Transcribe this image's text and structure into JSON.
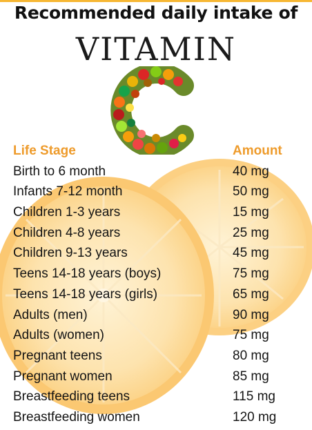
{
  "headline": "Recommended daily intake of",
  "vitamin_word": "VITAMIN",
  "c_art": {
    "letter": "C",
    "depicts": "fruit-and-vegetable mosaic"
  },
  "table": {
    "header": {
      "stage": "Life Stage",
      "amount": "Amount"
    },
    "rows": [
      {
        "stage": "Birth to 6 month",
        "amount": "40 mg"
      },
      {
        "stage": "Infants 7-12 month",
        "amount": "50 mg"
      },
      {
        "stage": "Children 1-3 years",
        "amount": "15 mg"
      },
      {
        "stage": "Children 4-8 years",
        "amount": "25 mg"
      },
      {
        "stage": "Children 9-13 years",
        "amount": "45 mg"
      },
      {
        "stage": "Teens 14-18 years (boys)",
        "amount": "75 mg"
      },
      {
        "stage": "Teens 14-18 years (girls)",
        "amount": "65 mg"
      },
      {
        "stage": "Adults (men)",
        "amount": "90 mg"
      },
      {
        "stage": "Adults (women)",
        "amount": "75 mg"
      },
      {
        "stage": "Pregnant teens",
        "amount": "80 mg"
      },
      {
        "stage": "Pregnant women",
        "amount": "85 mg"
      },
      {
        "stage": "Breastfeeding teens",
        "amount": "115 mg"
      },
      {
        "stage": "Breastfeeding women",
        "amount": "120 mg"
      }
    ]
  },
  "colors": {
    "header_accent": "#ee9b2b",
    "text": "#141414",
    "orange_light": "#fde2ad",
    "orange_rind": "#fbc872"
  }
}
